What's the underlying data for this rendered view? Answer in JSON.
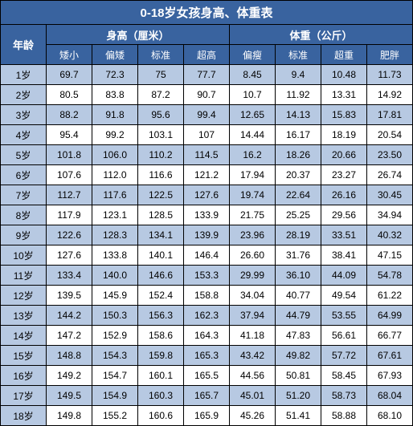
{
  "title": "0-18岁女孩身高、体重表",
  "age_header": "年龄",
  "group_headers": {
    "height": "身高（厘米）",
    "weight": "体重（公斤）"
  },
  "height_cols": [
    "矮小",
    "偏矮",
    "标准",
    "超高"
  ],
  "weight_cols": [
    "偏瘦",
    "标准",
    "超重",
    "肥胖"
  ],
  "colors": {
    "header_bg": "#39639f",
    "header_fg": "#ffffff",
    "stripe_bg": "#b7c9e2",
    "normal_bg": "#ffffff",
    "border": "#000000"
  },
  "rows": [
    {
      "age": "1岁",
      "h": [
        "69.7",
        "72.3",
        "75",
        "77.7"
      ],
      "w": [
        "8.45",
        "9.4",
        "10.48",
        "11.73"
      ]
    },
    {
      "age": "2岁",
      "h": [
        "80.5",
        "83.8",
        "87.2",
        "90.7"
      ],
      "w": [
        "10.7",
        "11.92",
        "13.31",
        "14.92"
      ]
    },
    {
      "age": "3岁",
      "h": [
        "88.2",
        "91.8",
        "95.6",
        "99.4"
      ],
      "w": [
        "12.65",
        "14.13",
        "15.83",
        "17.81"
      ]
    },
    {
      "age": "4岁",
      "h": [
        "95.4",
        "99.2",
        "103.1",
        "107"
      ],
      "w": [
        "14.44",
        "16.17",
        "18.19",
        "20.54"
      ]
    },
    {
      "age": "5岁",
      "h": [
        "101.8",
        "106.0",
        "110.2",
        "114.5"
      ],
      "w": [
        "16.2",
        "18.26",
        "20.66",
        "23.50"
      ]
    },
    {
      "age": "6岁",
      "h": [
        "107.6",
        "112.0",
        "116.6",
        "121.2"
      ],
      "w": [
        "17.94",
        "20.37",
        "23.27",
        "26.74"
      ]
    },
    {
      "age": "7岁",
      "h": [
        "112.7",
        "117.6",
        "122.5",
        "127.6"
      ],
      "w": [
        "19.74",
        "22.64",
        "26.16",
        "30.45"
      ]
    },
    {
      "age": "8岁",
      "h": [
        "117.9",
        "123.1",
        "128.5",
        "133.9"
      ],
      "w": [
        "21.75",
        "25.25",
        "29.56",
        "34.94"
      ]
    },
    {
      "age": "9岁",
      "h": [
        "122.6",
        "128.3",
        "134.1",
        "139.9"
      ],
      "w": [
        "23.96",
        "28.19",
        "33.51",
        "40.32"
      ]
    },
    {
      "age": "10岁",
      "h": [
        "127.6",
        "133.8",
        "140.1",
        "146.4"
      ],
      "w": [
        "26.60",
        "31.76",
        "38.41",
        "47.15"
      ]
    },
    {
      "age": "11岁",
      "h": [
        "133.4",
        "140.0",
        "146.6",
        "153.3"
      ],
      "w": [
        "29.99",
        "36.10",
        "44.09",
        "54.78"
      ]
    },
    {
      "age": "12岁",
      "h": [
        "139.5",
        "145.9",
        "152.4",
        "158.8"
      ],
      "w": [
        "34.04",
        "40.77",
        "49.54",
        "61.22"
      ]
    },
    {
      "age": "13岁",
      "h": [
        "144.2",
        "150.3",
        "156.3",
        "162.3"
      ],
      "w": [
        "37.94",
        "44.79",
        "53.55",
        "64.99"
      ]
    },
    {
      "age": "14岁",
      "h": [
        "147.2",
        "152.9",
        "158.6",
        "164.3"
      ],
      "w": [
        "41.18",
        "47.83",
        "56.61",
        "66.77"
      ]
    },
    {
      "age": "15岁",
      "h": [
        "148.8",
        "154.3",
        "159.8",
        "165.3"
      ],
      "w": [
        "43.42",
        "49.82",
        "57.72",
        "67.61"
      ]
    },
    {
      "age": "16岁",
      "h": [
        "149.2",
        "154.7",
        "160.1",
        "165.5"
      ],
      "w": [
        "44.56",
        "50.81",
        "58.45",
        "67.93"
      ]
    },
    {
      "age": "17岁",
      "h": [
        "149.5",
        "154.9",
        "160.3",
        "165.7"
      ],
      "w": [
        "45.01",
        "51.20",
        "58.73",
        "68.04"
      ]
    },
    {
      "age": "18岁",
      "h": [
        "149.8",
        "155.2",
        "160.6",
        "165.9"
      ],
      "w": [
        "45.26",
        "51.41",
        "58.88",
        "68.10"
      ]
    }
  ]
}
